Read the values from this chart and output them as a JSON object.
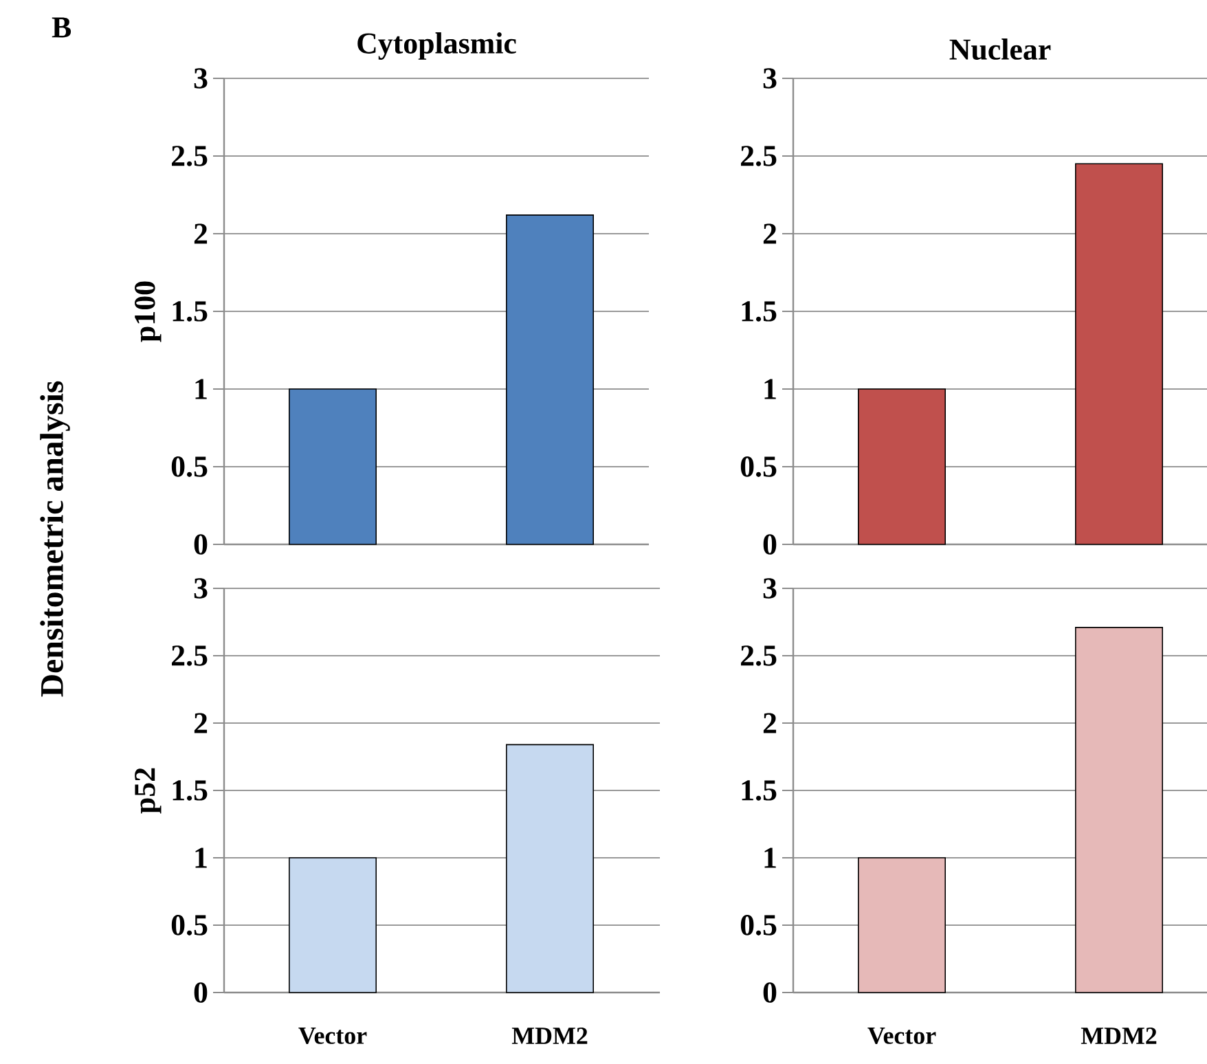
{
  "chart_data": [
    {
      "type": "bar",
      "title": "Cytoplasmic",
      "ylabel": "p100",
      "annotations": [
        "B",
        "Densitometric analysis"
      ],
      "values": [
        1,
        2.12
      ],
      "color": "#4f81bd",
      "ylim": [
        0,
        3
      ],
      "yticks": [
        0,
        0.5,
        1,
        1.5,
        2,
        2.5,
        3
      ],
      "grid": "y"
    },
    {
      "type": "bar",
      "title": "Nuclear",
      "values": [
        1,
        2.45
      ],
      "color": "#c0504d",
      "ylim": [
        0,
        3
      ],
      "yticks": [
        0,
        0.5,
        1,
        1.5,
        2,
        2.5,
        3
      ],
      "grid": "y"
    },
    {
      "type": "bar",
      "ylabel": "p52",
      "categories": [
        "Vector",
        "MDM2"
      ],
      "values": [
        1,
        1.84
      ],
      "color": "#c6d9f0",
      "ylim": [
        0,
        3
      ],
      "yticks": [
        0,
        0.5,
        1,
        1.5,
        2,
        2.5,
        3
      ],
      "grid": "y"
    },
    {
      "type": "bar",
      "categories": [
        "Vector",
        "MDM2"
      ],
      "values": [
        1,
        2.71
      ],
      "color": "#e6b9b8",
      "ylim": [
        0,
        3
      ],
      "yticks": [
        0,
        0.5,
        1,
        1.5,
        2,
        2.5,
        3
      ],
      "grid": "y"
    }
  ]
}
